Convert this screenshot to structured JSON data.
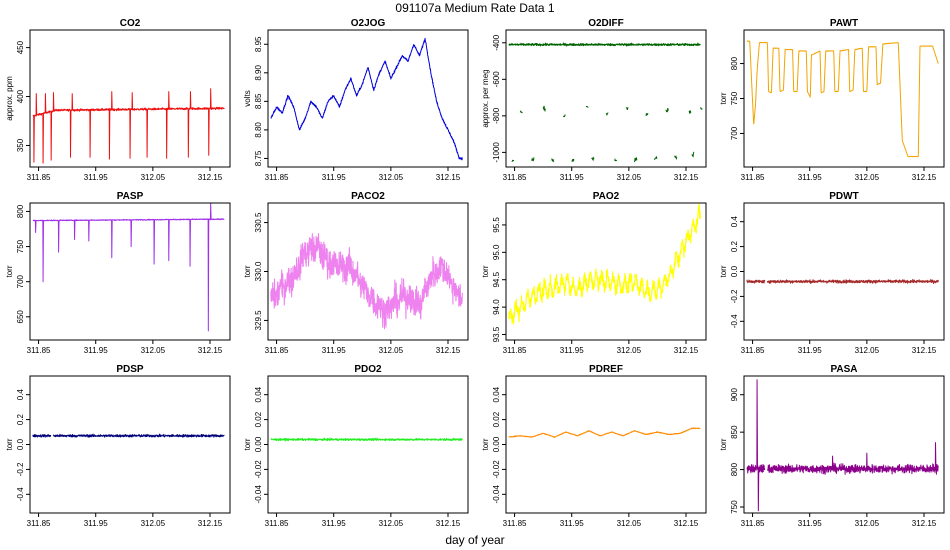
{
  "figure": {
    "title": "091107a   Medium Rate Data 1",
    "xlabel": "day of year",
    "x_ticks": [
      311.85,
      311.95,
      312.05,
      312.15
    ],
    "x_tick_labels": [
      "311.85",
      "311.95",
      "312.05",
      "312.15"
    ],
    "xlim": [
      311.835,
      312.185
    ]
  },
  "chart_data": [
    {
      "type": "line",
      "title": "CO2",
      "ylabel": "approx. ppm",
      "color": "#ee1111",
      "ylim": [
        328,
        468
      ],
      "y_ticks": [
        350,
        400,
        450
      ],
      "y_tick_labels": [
        "350",
        "400",
        "450"
      ],
      "mode": "spiky",
      "baseline": 384,
      "noise": 1.0,
      "trend": [
        [
          311.84,
          380
        ],
        [
          311.88,
          386
        ],
        [
          312.175,
          388
        ]
      ],
      "spikes": [
        [
          311.842,
          333
        ],
        [
          311.846,
          403
        ],
        [
          311.858,
          332
        ],
        [
          311.862,
          403
        ],
        [
          311.872,
          335
        ],
        [
          311.876,
          404
        ],
        [
          311.906,
          338
        ],
        [
          311.909,
          403
        ],
        [
          311.94,
          338
        ],
        [
          311.974,
          336
        ],
        [
          311.978,
          405
        ],
        [
          312.01,
          337
        ],
        [
          312.014,
          404
        ],
        [
          312.04,
          338
        ],
        [
          312.074,
          337
        ],
        [
          312.078,
          405
        ],
        [
          312.112,
          338
        ],
        [
          312.116,
          405
        ],
        [
          312.148,
          340
        ],
        [
          312.151,
          408
        ]
      ]
    },
    {
      "type": "line",
      "title": "O2JOG",
      "ylabel": "volts",
      "color": "#0000dd",
      "ylim": [
        8.735,
        8.975
      ],
      "y_ticks": [
        8.75,
        8.8,
        8.85,
        8.9,
        8.95
      ],
      "y_tick_labels": [
        "8.75",
        "8.80",
        "8.85",
        "8.90",
        "8.95"
      ],
      "mode": "smooth",
      "noise": 0.002,
      "points": [
        [
          311.84,
          8.82
        ],
        [
          311.85,
          8.84
        ],
        [
          311.86,
          8.83
        ],
        [
          311.87,
          8.86
        ],
        [
          311.88,
          8.84
        ],
        [
          311.89,
          8.8
        ],
        [
          311.9,
          8.82
        ],
        [
          311.91,
          8.85
        ],
        [
          311.92,
          8.84
        ],
        [
          311.93,
          8.82
        ],
        [
          311.94,
          8.85
        ],
        [
          311.95,
          8.86
        ],
        [
          311.96,
          8.84
        ],
        [
          311.97,
          8.87
        ],
        [
          311.98,
          8.89
        ],
        [
          311.99,
          8.86
        ],
        [
          312.0,
          8.88
        ],
        [
          312.01,
          8.91
        ],
        [
          312.02,
          8.87
        ],
        [
          312.03,
          8.9
        ],
        [
          312.04,
          8.92
        ],
        [
          312.05,
          8.89
        ],
        [
          312.06,
          8.91
        ],
        [
          312.07,
          8.93
        ],
        [
          312.08,
          8.92
        ],
        [
          312.09,
          8.95
        ],
        [
          312.1,
          8.93
        ],
        [
          312.11,
          8.96
        ],
        [
          312.12,
          8.9
        ],
        [
          312.13,
          8.85
        ],
        [
          312.14,
          8.82
        ],
        [
          312.15,
          8.8
        ],
        [
          312.16,
          8.78
        ],
        [
          312.17,
          8.75
        ]
      ]
    },
    {
      "type": "scatter",
      "title": "O2DIFF",
      "ylabel": "approx. per meg",
      "color": "#006400",
      "ylim": [
        -1080,
        -330
      ],
      "y_ticks": [
        -1000,
        -800,
        -600,
        -400
      ],
      "y_tick_labels": [
        "-1000",
        "-800",
        "-600",
        "-400"
      ],
      "mode": "bands",
      "main_level": -410,
      "main_x": [
        311.84,
        312.175
      ],
      "noise": 6,
      "clusters": [
        [
          311.86,
          -780
        ],
        [
          311.9,
          -760
        ],
        [
          311.935,
          -800
        ],
        [
          311.975,
          -750
        ],
        [
          312.01,
          -790
        ],
        [
          312.045,
          -760
        ],
        [
          312.08,
          -790
        ],
        [
          312.115,
          -770
        ],
        [
          312.155,
          -780
        ],
        [
          312.175,
          -760
        ],
        [
          311.845,
          -1045
        ],
        [
          311.88,
          -1040
        ],
        [
          311.915,
          -1040
        ],
        [
          311.95,
          -1045
        ],
        [
          311.985,
          -1035
        ],
        [
          312.025,
          -1040
        ],
        [
          312.06,
          -1040
        ],
        [
          312.095,
          -1030
        ],
        [
          312.13,
          -1030
        ],
        [
          312.16,
          -1010
        ]
      ]
    },
    {
      "type": "line",
      "title": "PAWT",
      "ylabel": "torr",
      "color": "#f2a400",
      "ylim": [
        652,
        848
      ],
      "y_ticks": [
        700,
        750,
        800
      ],
      "y_tick_labels": [
        "700",
        "750",
        "800"
      ],
      "mode": "smooth",
      "noise": 0.3,
      "points": [
        [
          311.84,
          832
        ],
        [
          311.845,
          832
        ],
        [
          311.848,
          780
        ],
        [
          311.852,
          712
        ],
        [
          311.855,
          740
        ],
        [
          311.858,
          790
        ],
        [
          311.862,
          830
        ],
        [
          311.876,
          830
        ],
        [
          311.878,
          760
        ],
        [
          311.883,
          758
        ],
        [
          311.886,
          822
        ],
        [
          311.896,
          822
        ],
        [
          311.898,
          760
        ],
        [
          311.904,
          762
        ],
        [
          311.907,
          820
        ],
        [
          311.92,
          820
        ],
        [
          311.922,
          760
        ],
        [
          311.928,
          760
        ],
        [
          311.931,
          818
        ],
        [
          311.944,
          818
        ],
        [
          311.946,
          760
        ],
        [
          311.951,
          752
        ],
        [
          311.953,
          812
        ],
        [
          311.968,
          818
        ],
        [
          311.97,
          758
        ],
        [
          311.975,
          760
        ],
        [
          311.978,
          818
        ],
        [
          311.992,
          818
        ],
        [
          311.994,
          760
        ],
        [
          312.0,
          760
        ],
        [
          312.003,
          818
        ],
        [
          312.018,
          820
        ],
        [
          312.02,
          760
        ],
        [
          312.026,
          762
        ],
        [
          312.029,
          820
        ],
        [
          312.042,
          822
        ],
        [
          312.044,
          760
        ],
        [
          312.05,
          760
        ],
        [
          312.053,
          824
        ],
        [
          312.066,
          824
        ],
        [
          312.068,
          770
        ],
        [
          312.074,
          772
        ],
        [
          312.078,
          828
        ],
        [
          312.105,
          830
        ],
        [
          312.112,
          690
        ],
        [
          312.122,
          667
        ],
        [
          312.14,
          667
        ],
        [
          312.143,
          825
        ],
        [
          312.165,
          825
        ],
        [
          312.175,
          800
        ]
      ]
    },
    {
      "type": "line",
      "title": "PASP",
      "ylabel": "torr",
      "color": "#a030e8",
      "ylim": [
        617,
        812
      ],
      "y_ticks": [
        650,
        700,
        750,
        800
      ],
      "y_tick_labels": [
        "650",
        "700",
        "750",
        "800"
      ],
      "mode": "spiky",
      "baseline": 788,
      "noise": 0.6,
      "trend": [
        [
          311.84,
          787
        ],
        [
          312.175,
          789
        ]
      ],
      "spikes": [
        [
          311.845,
          770
        ],
        [
          311.858,
          700
        ],
        [
          311.885,
          742
        ],
        [
          311.913,
          760
        ],
        [
          311.938,
          758
        ],
        [
          311.978,
          734
        ],
        [
          312.012,
          750
        ],
        [
          312.052,
          725
        ],
        [
          312.078,
          730
        ],
        [
          312.115,
          722
        ],
        [
          312.147,
          630
        ],
        [
          312.151,
          812
        ]
      ]
    },
    {
      "type": "line",
      "title": "PACO2",
      "ylabel": "torr",
      "color": "#ee82ee",
      "ylim": [
        329.3,
        330.7
      ],
      "y_ticks": [
        329.5,
        330.0,
        330.5
      ],
      "y_tick_labels": [
        "329.5",
        "330.0",
        "330.5"
      ],
      "mode": "banded",
      "noise": 0.09,
      "amp": 0.03,
      "period": 0.04,
      "points": [
        [
          311.84,
          329.7
        ],
        [
          311.86,
          329.85
        ],
        [
          311.88,
          329.95
        ],
        [
          311.9,
          330.2
        ],
        [
          311.92,
          330.25
        ],
        [
          311.94,
          330.1
        ],
        [
          311.96,
          330.05
        ],
        [
          311.98,
          330.05
        ],
        [
          312.0,
          329.85
        ],
        [
          312.02,
          329.7
        ],
        [
          312.04,
          329.6
        ],
        [
          312.06,
          329.7
        ],
        [
          312.08,
          329.75
        ],
        [
          312.1,
          329.65
        ],
        [
          312.12,
          329.95
        ],
        [
          312.14,
          330.05
        ],
        [
          312.16,
          329.85
        ],
        [
          312.175,
          329.7
        ]
      ]
    },
    {
      "type": "line",
      "title": "PAO2",
      "ylabel": "torr",
      "color": "#ffff00",
      "ylim": [
        93.4,
        95.9
      ],
      "y_ticks": [
        93.5,
        94.0,
        94.5,
        95.0,
        95.5
      ],
      "y_tick_labels": [
        "93.5",
        "94.0",
        "94.5",
        "95.0",
        "95.5"
      ],
      "mode": "banded",
      "noise": 0.07,
      "amp": 0.12,
      "period": 0.03,
      "points": [
        [
          311.84,
          93.8
        ],
        [
          311.86,
          94.0
        ],
        [
          311.88,
          94.2
        ],
        [
          311.9,
          94.3
        ],
        [
          311.92,
          94.35
        ],
        [
          311.94,
          94.45
        ],
        [
          311.96,
          94.3
        ],
        [
          311.98,
          94.5
        ],
        [
          312.0,
          94.5
        ],
        [
          312.02,
          94.45
        ],
        [
          312.04,
          94.4
        ],
        [
          312.06,
          94.45
        ],
        [
          312.08,
          94.3
        ],
        [
          312.1,
          94.3
        ],
        [
          312.12,
          94.55
        ],
        [
          312.14,
          95.0
        ],
        [
          312.16,
          95.4
        ],
        [
          312.175,
          95.7
        ]
      ]
    },
    {
      "type": "line",
      "title": "PDWT",
      "ylabel": "torr",
      "color": "#a52a2a",
      "ylim": [
        -0.55,
        0.55
      ],
      "y_ticks": [
        -0.4,
        -0.2,
        0.0,
        0.2,
        0.4
      ],
      "y_tick_labels": [
        "-0.4",
        "-0.2",
        "0.0",
        "0.2",
        "0.4"
      ],
      "mode": "flat",
      "baseline": -0.08,
      "noise": 0.012,
      "gap": [
        311.872,
        311.876
      ]
    },
    {
      "type": "line",
      "title": "PDSP",
      "ylabel": "torr",
      "color": "#00007a",
      "ylim": [
        -0.55,
        0.55
      ],
      "y_ticks": [
        -0.4,
        -0.2,
        0.0,
        0.2,
        0.4
      ],
      "y_tick_labels": [
        "-0.4",
        "-0.2",
        "0.0",
        "0.2",
        "0.4"
      ],
      "mode": "flat",
      "baseline": 0.07,
      "noise": 0.01,
      "gap": [
        311.872,
        311.876
      ]
    },
    {
      "type": "line",
      "title": "PDO2",
      "ylabel": "torr",
      "color": "#22ee22",
      "ylim": [
        -0.055,
        0.055
      ],
      "y_ticks": [
        -0.04,
        -0.02,
        0.0,
        0.02,
        0.04
      ],
      "y_tick_labels": [
        "-0.04",
        "-0.02",
        "0.00",
        "0.02",
        "0.04"
      ],
      "mode": "flat",
      "baseline": 0.004,
      "noise": 0.0008,
      "gap": null
    },
    {
      "type": "line",
      "title": "PDREF",
      "ylabel": "torr",
      "color": "#ff8c00",
      "ylim": [
        -0.055,
        0.055
      ],
      "y_ticks": [
        -0.04,
        -0.02,
        0.0,
        0.02,
        0.04
      ],
      "y_tick_labels": [
        "-0.04",
        "-0.02",
        "0.00",
        "0.02",
        "0.04"
      ],
      "mode": "smooth",
      "noise": 0.0003,
      "points": [
        [
          311.84,
          0.006
        ],
        [
          311.86,
          0.007
        ],
        [
          311.88,
          0.006
        ],
        [
          311.9,
          0.009
        ],
        [
          311.92,
          0.006
        ],
        [
          311.94,
          0.01
        ],
        [
          311.96,
          0.007
        ],
        [
          311.98,
          0.011
        ],
        [
          312.0,
          0.007
        ],
        [
          312.02,
          0.01
        ],
        [
          312.04,
          0.007
        ],
        [
          312.06,
          0.011
        ],
        [
          312.08,
          0.008
        ],
        [
          312.1,
          0.01
        ],
        [
          312.12,
          0.008
        ],
        [
          312.14,
          0.009
        ],
        [
          312.16,
          0.013
        ],
        [
          312.175,
          0.013
        ]
      ]
    },
    {
      "type": "line",
      "title": "PASA",
      "ylabel": "torr",
      "color": "#8b008b",
      "ylim": [
        742,
        925
      ],
      "y_ticks": [
        750,
        800,
        850,
        900
      ],
      "y_tick_labels": [
        "750",
        "800",
        "850",
        "900"
      ],
      "mode": "noisy",
      "baseline": 801,
      "noise": 5.5,
      "gap": [
        311.872,
        311.876
      ],
      "spikes": [
        [
          311.858,
          920
        ],
        [
          311.86,
          745
        ],
        [
          311.99,
          818
        ],
        [
          312.05,
          822
        ],
        [
          312.17,
          836
        ]
      ]
    }
  ]
}
